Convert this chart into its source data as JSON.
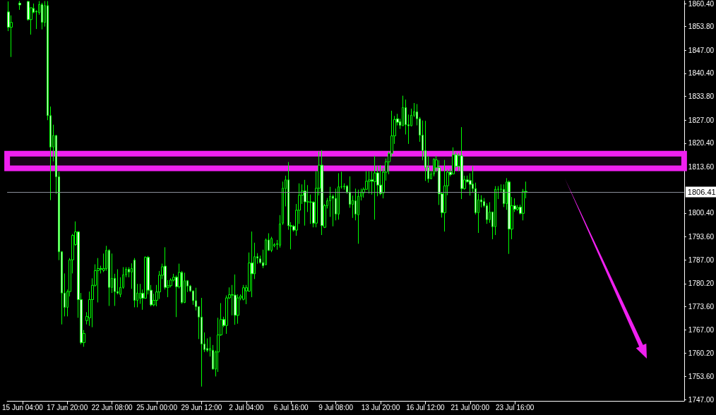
{
  "chart_data": {
    "type": "candlestick",
    "color": "#00ff00",
    "categories": [
      null,
      null,
      null,
      null,
      null,
      "15 Jun 04:00",
      null,
      null,
      null,
      null,
      null,
      null,
      null,
      null,
      null,
      null,
      null,
      null,
      null,
      null,
      null,
      "17 Jun 20:00",
      null,
      null,
      null,
      null,
      null,
      null,
      null,
      null,
      null,
      null,
      null,
      null,
      null,
      null,
      null,
      "22 Jun 08:00",
      null,
      null,
      null,
      null,
      null,
      null,
      null,
      null,
      null,
      null,
      null,
      null,
      null,
      null,
      null,
      "25 Jun 00:00",
      null,
      null,
      null,
      null,
      null,
      null,
      null,
      null,
      null,
      null,
      null,
      null,
      null,
      null,
      null,
      "29 Jun 12:00",
      null,
      null,
      null,
      null,
      null,
      null,
      null,
      null,
      null,
      null,
      null,
      null,
      null,
      null,
      null,
      "2 Jul 04:00",
      null,
      null,
      null,
      null,
      null,
      null,
      null,
      null,
      null,
      null,
      null,
      null,
      null,
      null,
      null,
      "6 Jul 16:00",
      null,
      null,
      null,
      null,
      null,
      null,
      null,
      null,
      null,
      null,
      null,
      null,
      null,
      null,
      null,
      "9 Jul 08:00",
      null,
      null,
      null,
      null,
      null,
      null,
      null,
      null,
      null,
      null,
      null,
      null,
      null,
      null,
      null,
      "13 Jul 20:00",
      null,
      null,
      null,
      null,
      null,
      null,
      null,
      null,
      null,
      null,
      null,
      null,
      null,
      null,
      null,
      "16 Jul 12:00",
      null,
      null,
      null,
      null,
      null,
      null,
      null,
      null,
      null,
      null,
      null,
      null,
      null,
      null,
      null,
      "21 Jul 00:00",
      null,
      null,
      null,
      null,
      null,
      null,
      null,
      null,
      null,
      null,
      null,
      null,
      null,
      null,
      null,
      "23 Jul 16:00",
      null,
      null,
      null,
      null,
      null,
      null,
      null,
      null,
      null,
      null,
      null,
      null,
      null,
      null,
      null,
      null,
      null,
      null,
      null,
      null,
      null,
      null,
      null,
      null,
      null,
      null,
      null,
      null,
      null,
      null,
      null,
      null,
      null,
      null,
      null,
      null,
      null,
      null,
      null,
      null,
      null,
      null,
      null,
      null,
      null,
      null,
      null,
      null,
      null,
      null,
      null,
      null,
      null,
      null,
      null,
      null,
      null,
      null,
      null,
      null
    ],
    "ohlc": [
      [
        1858.0,
        1861.0,
        1852.5,
        1853.6
      ],
      [
        1853.6,
        1857.0,
        1845.1,
        1855.0
      ],
      null,
      null,
      [
        1860.5,
        1861.1,
        1858.6,
        1860.0
      ],
      null,
      null,
      [
        1861.0,
        1861.1,
        1855.5,
        1855.8
      ],
      [
        1855.8,
        1859.2,
        1851.5,
        1859.2
      ],
      [
        1859.0,
        1860.4,
        1857.6,
        1857.9
      ],
      [
        1858.2,
        1858.5,
        1853.1,
        1858.0
      ],
      [
        1857.8,
        1861.1,
        1857.2,
        1860.1
      ],
      [
        1860.1,
        1860.6,
        1853.0,
        1855.0
      ],
      [
        1855.0,
        1861.1,
        1853.8,
        1859.8
      ],
      [
        1859.8,
        1861.1,
        1827.0,
        1828.3
      ],
      [
        1828.3,
        1830.9,
        1804.1,
        1819.3
      ],
      [
        1819.3,
        1825.7,
        1815.2,
        1822.6
      ],
      [
        1822.6,
        1822.8,
        1805.9,
        1810.8
      ],
      [
        1810.8,
        1812.2,
        1786.9,
        1789.3
      ],
      [
        1789.3,
        1789.5,
        1768.5,
        1777.5
      ],
      [
        1777.5,
        1783.1,
        1770.8,
        1773.4
      ],
      [
        1773.4,
        1778.5,
        1770.8,
        1777.9
      ],
      [
        1777.9,
        1787.5,
        1776.5,
        1787.0
      ],
      [
        1787.0,
        1794.4,
        1783.1,
        1794.0
      ],
      [
        1791.4,
        1798.0,
        1791.0,
        1795.0
      ],
      [
        1795.0,
        1795.2,
        1770.4,
        1775.6
      ],
      [
        1775.6,
        1777.5,
        1762.8,
        1763.3
      ],
      [
        1763.3,
        1766.9,
        1762.1,
        1765.9
      ],
      [
        1769.6,
        1772.0,
        1768.5,
        1770.8
      ],
      [
        1770.4,
        1777.9,
        1768.1,
        1775.6
      ],
      [
        1775.6,
        1781.7,
        1767.7,
        1779.7
      ],
      [
        1779.7,
        1785.7,
        1779.3,
        1783.9
      ],
      [
        1783.9,
        1787.5,
        1774.8,
        1784.5
      ],
      [
        1784.3,
        1785.3,
        1783.1,
        1784.5
      ],
      [
        1784.0,
        1788.8,
        1783.5,
        1784.5
      ],
      [
        1784.5,
        1791.0,
        1783.9,
        1789.7
      ],
      [
        1789.7,
        1790.0,
        1773.8,
        1779.1
      ],
      [
        1779.1,
        1788.8,
        1777.5,
        1781.7
      ],
      [
        1781.7,
        1783.0,
        1773.8,
        1777.9
      ],
      [
        1777.9,
        1784.3,
        1777.1,
        1777.5
      ],
      [
        1777.1,
        1782.0,
        1776.3,
        1779.1
      ],
      [
        1779.1,
        1784.9,
        1778.7,
        1782.7
      ],
      [
        1782.7,
        1784.9,
        1782.0,
        1784.3
      ],
      [
        1784.3,
        1784.9,
        1782.0,
        1783.5
      ],
      [
        1783.5,
        1786.0,
        1778.7,
        1784.5
      ],
      [
        1786.9,
        1787.5,
        1773.4,
        1775.4
      ],
      [
        1775.4,
        1780.1,
        1773.4,
        1777.5
      ],
      [
        1776.0,
        1780.1,
        1774.4,
        1777.4
      ],
      [
        1777.4,
        1778.5,
        1772.7,
        1776.0
      ],
      [
        1776.0,
        1788.0,
        1776.0,
        1787.7
      ],
      [
        1787.7,
        1788.1,
        1777.1,
        1778.3
      ],
      [
        1778.3,
        1779.8,
        1773.7,
        1774.1
      ],
      [
        1774.1,
        1777.3,
        1773.7,
        1775.4
      ],
      [
        1775.4,
        1779.8,
        1773.7,
        1777.8
      ],
      [
        1777.8,
        1783.8,
        1775.8,
        1782.6
      ],
      [
        1782.6,
        1785.9,
        1781.5,
        1785.0
      ],
      [
        1785.2,
        1790.6,
        1778.5,
        1779.1
      ],
      [
        1779.1,
        1781.2,
        1776.3,
        1779.6
      ],
      [
        1779.6,
        1781.7,
        1779.1,
        1781.2
      ],
      [
        1781.2,
        1783.0,
        1780.8,
        1782.0
      ],
      [
        1782.0,
        1782.5,
        1770.6,
        1779.3
      ],
      [
        1779.3,
        1785.9,
        1778.8,
        1783.4
      ],
      [
        1783.4,
        1783.8,
        1774.4,
        1774.8
      ],
      [
        1774.8,
        1783.3,
        1774.6,
        1781.0
      ],
      [
        1781.0,
        1781.2,
        1777.8,
        1779.5
      ],
      [
        1779.5,
        1779.8,
        1777.8,
        1778.1
      ],
      [
        1778.1,
        1778.2,
        1774.1,
        1775.3
      ],
      [
        1775.3,
        1779.0,
        1772.5,
        1773.6
      ],
      [
        1773.6,
        1773.6,
        1764.3,
        1770.6
      ],
      [
        1770.6,
        1776.1,
        1750.7,
        1762.9
      ],
      [
        1762.9,
        1766.2,
        1760.6,
        1761.3
      ],
      [
        1761.6,
        1764.5,
        1760.6,
        1761.1
      ],
      [
        1761.1,
        1764.9,
        1759.3,
        1761.6
      ],
      [
        1761.1,
        1762.6,
        1755.6,
        1755.7
      ],
      [
        1755.7,
        1761.0,
        1753.6,
        1760.6
      ],
      [
        1760.6,
        1770.4,
        1754.9,
        1765.5
      ],
      [
        1765.5,
        1774.6,
        1765.2,
        1769.9
      ],
      [
        1769.9,
        1770.7,
        1767.7,
        1768.2
      ],
      [
        1768.2,
        1776.8,
        1765.8,
        1776.1
      ],
      [
        1776.1,
        1779.1,
        1775.8,
        1777.0
      ],
      [
        1777.0,
        1779.8,
        1771.1,
        1776.9
      ],
      [
        1776.9,
        1782.8,
        1768.4,
        1771.1
      ],
      [
        1771.1,
        1777.1,
        1768.7,
        1776.1
      ],
      [
        1776.1,
        1777.1,
        1775.4,
        1776.6
      ],
      [
        1775.7,
        1779.8,
        1775.4,
        1779.0
      ],
      [
        1778.1,
        1779.8,
        1774.3,
        1779.0
      ],
      [
        1778.0,
        1789.1,
        1777.9,
        1786.1
      ],
      [
        1786.1,
        1795.1,
        1776.3,
        1783.0
      ],
      [
        1783.0,
        1791.9,
        1781.5,
        1787.9
      ],
      [
        1787.9,
        1788.9,
        1785.9,
        1787.5
      ],
      [
        1787.3,
        1788.2,
        1785.9,
        1786.2
      ],
      [
        1786.2,
        1789.9,
        1784.6,
        1785.3
      ],
      [
        1785.6,
        1793.1,
        1785.5,
        1792.7
      ],
      [
        1792.7,
        1794.6,
        1789.6,
        1789.7
      ],
      [
        1789.7,
        1793.6,
        1789.2,
        1793.1
      ],
      [
        1791.0,
        1791.8,
        1790.6,
        1791.4
      ],
      [
        1791.4,
        1792.7,
        1789.9,
        1791.6
      ],
      [
        1791.2,
        1799.8,
        1790.5,
        1797.3
      ],
      [
        1797.5,
        1809.4,
        1797.0,
        1807.5
      ],
      [
        1807.4,
        1811.1,
        1802.3,
        1809.9
      ],
      [
        1809.9,
        1815.0,
        1795.6,
        1796.8
      ],
      [
        1796.8,
        1797.8,
        1790.0,
        1796.6
      ],
      [
        1796.6,
        1797.0,
        1795.1,
        1795.5
      ],
      [
        1795.5,
        1803.0,
        1793.9,
        1801.2
      ],
      [
        1801.2,
        1808.9,
        1797.3,
        1805.5
      ],
      [
        1805.5,
        1808.6,
        1803.0,
        1806.7
      ],
      [
        1806.7,
        1809.9,
        1796.8,
        1803.6
      ],
      [
        1803.6,
        1808.4,
        1800.7,
        1803.6
      ],
      [
        1803.6,
        1805.7,
        1797.3,
        1803.5
      ],
      [
        1803.5,
        1803.8,
        1796.3,
        1797.5
      ],
      [
        1797.5,
        1812.4,
        1796.3,
        1807.5
      ],
      [
        1807.5,
        1818.0,
        1805.4,
        1814.1
      ],
      [
        1814.1,
        1818.4,
        1794.1,
        1796.8
      ],
      [
        1796.3,
        1803.0,
        1796.1,
        1802.5
      ],
      [
        1802.5,
        1804.7,
        1801.7,
        1803.9
      ],
      [
        1803.9,
        1807.9,
        1799.3,
        1805.2
      ],
      [
        1805.2,
        1805.7,
        1796.6,
        1804.6
      ],
      [
        1804.6,
        1807.4,
        1798.3,
        1800.1
      ],
      [
        1800.1,
        1811.8,
        1798.5,
        1807.9
      ],
      [
        1807.9,
        1812.2,
        1807.4,
        1807.9
      ],
      [
        1807.9,
        1808.9,
        1807.1,
        1808.1
      ],
      [
        1808.1,
        1808.4,
        1805.9,
        1806.4
      ],
      [
        1806.4,
        1810.9,
        1801.9,
        1802.9
      ],
      [
        1802.9,
        1805.4,
        1799.0,
        1804.0
      ],
      [
        1803.9,
        1807.4,
        1798.3,
        1800.1
      ],
      [
        1799.9,
        1807.1,
        1791.6,
        1805.2
      ],
      [
        1805.2,
        1807.4,
        1804.0,
        1806.4
      ],
      [
        1806.2,
        1807.7,
        1804.8,
        1807.2
      ],
      [
        1807.2,
        1812.4,
        1807.1,
        1809.5
      ],
      [
        1809.5,
        1812.4,
        1806.0,
        1809.9
      ],
      [
        1809.9,
        1812.4,
        1805.7,
        1809.5
      ],
      [
        1809.4,
        1816.8,
        1798.5,
        1811.9
      ],
      [
        1811.9,
        1813.8,
        1805.2,
        1808.4
      ],
      [
        1808.4,
        1814.1,
        1805.5,
        1806.0
      ],
      [
        1806.2,
        1813.3,
        1804.6,
        1812.1
      ],
      [
        1812.1,
        1816.0,
        1809.7,
        1815.1
      ],
      [
        1815.1,
        1818.0,
        1811.5,
        1817.5
      ],
      [
        1817.5,
        1829.7,
        1816.5,
        1822.5
      ],
      [
        1822.5,
        1828.2,
        1820.2,
        1827.2
      ],
      [
        1827.4,
        1828.8,
        1825.5,
        1826.4
      ],
      [
        1826.6,
        1827.4,
        1824.5,
        1825.5
      ],
      [
        1825.4,
        1834.0,
        1825.4,
        1830.6
      ],
      [
        1830.6,
        1832.9,
        1822.9,
        1825.7
      ],
      [
        1825.7,
        1828.6,
        1820.2,
        1825.4
      ],
      [
        1825.4,
        1830.3,
        1825.2,
        1828.4
      ],
      [
        1828.4,
        1831.9,
        1827.9,
        1829.4
      ],
      [
        1829.4,
        1831.6,
        1825.5,
        1827.4
      ],
      [
        1827.4,
        1827.9,
        1820.8,
        1822.7
      ],
      [
        1822.7,
        1826.9,
        1815.5,
        1818.3
      ],
      [
        1818.3,
        1826.8,
        1809.6,
        1813.4
      ],
      [
        1813.4,
        1816.8,
        1809.1,
        1810.2
      ],
      [
        1810.2,
        1812.4,
        1810.1,
        1811.6
      ],
      [
        1811.6,
        1816.1,
        1810.9,
        1815.8
      ],
      [
        1813.4,
        1816.8,
        1812.1,
        1815.6
      ],
      [
        1813.4,
        1815.5,
        1802.7,
        1805.9
      ],
      [
        1805.9,
        1806.4,
        1799.1,
        1800.5
      ],
      [
        1800.5,
        1815.6,
        1795.1,
        1808.2
      ],
      [
        1808.2,
        1812.8,
        1805.5,
        1812.1
      ],
      [
        1812.1,
        1813.1,
        1810.9,
        1811.4
      ],
      [
        1811.6,
        1819.2,
        1811.6,
        1817.1
      ],
      [
        1817.1,
        1817.8,
        1813.4,
        1813.8
      ],
      [
        1813.8,
        1817.5,
        1812.5,
        1816.8
      ],
      [
        1816.8,
        1825.0,
        1804.4,
        1807.4
      ],
      [
        1807.4,
        1811.1,
        1807.1,
        1809.9
      ],
      [
        1809.9,
        1811.1,
        1809.1,
        1809.4
      ],
      [
        1809.7,
        1811.8,
        1805.4,
        1808.6
      ],
      [
        1808.7,
        1813.8,
        1806.4,
        1807.4
      ],
      [
        1807.4,
        1809.1,
        1800.0,
        1800.5
      ],
      [
        1800.5,
        1805.9,
        1794.7,
        1804.2
      ],
      [
        1804.2,
        1805.5,
        1802.0,
        1803.6
      ],
      [
        1803.7,
        1804.7,
        1802.0,
        1802.5
      ],
      [
        1802.5,
        1803.2,
        1797.3,
        1798.5
      ],
      [
        1798.5,
        1803.5,
        1797.6,
        1800.7
      ],
      [
        1800.7,
        1800.7,
        1792.9,
        1796.5
      ],
      [
        1796.5,
        1808.1,
        1794.1,
        1807.2
      ],
      [
        1807.2,
        1808.1,
        1804.4,
        1807.2
      ],
      [
        1807.2,
        1808.6,
        1806.2,
        1807.2
      ],
      [
        1807.2,
        1808.6,
        1802.1,
        1803.1
      ],
      [
        1803.1,
        1810.4,
        1801.3,
        1809.3
      ],
      [
        1809.3,
        1809.7,
        1788.7,
        1795.8
      ],
      [
        1795.8,
        1805.0,
        1792.9,
        1802.5
      ],
      [
        1802.5,
        1804.6,
        1800.7,
        1801.5
      ],
      [
        1801.5,
        1802.7,
        1801.0,
        1802.0
      ],
      [
        1802.1,
        1802.8,
        1800.0,
        1800.3
      ],
      [
        1800.3,
        1807.3,
        1798.3,
        1806.6
      ],
      [
        1806.6,
        1809.4,
        1804.6,
        1806.4
      ],
      null,
      null,
      null,
      null,
      null,
      null,
      null,
      null,
      null,
      null,
      null,
      null,
      null,
      null,
      null,
      null,
      null,
      null,
      null,
      null,
      null,
      null,
      null,
      null,
      null,
      null,
      null,
      null,
      null,
      null,
      null,
      null,
      null,
      null,
      null,
      null,
      null,
      null,
      null,
      null,
      null,
      null,
      null,
      null,
      null,
      null,
      null,
      null,
      null,
      null,
      null,
      null,
      null,
      null,
      null,
      null
    ],
    "ylim": [
      1746.6,
      1861.2
    ],
    "yticks": [
      {
        "value": 1860.4,
        "label": "1860.40"
      },
      {
        "value": 1853.8,
        "label": "1853.80"
      },
      {
        "value": 1847,
        "label": "1847.00"
      },
      {
        "value": 1840.4,
        "label": "1840.40"
      },
      {
        "value": 1833.8,
        "label": "1833.80"
      },
      {
        "value": 1827,
        "label": "1827.00"
      },
      {
        "value": 1820.4,
        "label": "1820.40"
      },
      {
        "value": 1813.6,
        "label": "1813.60"
      },
      {
        "value": 1800.4,
        "label": "1800.40"
      },
      {
        "value": 1793.6,
        "label": "1793.60"
      },
      {
        "value": 1787,
        "label": "1787.00"
      },
      {
        "value": 1780.2,
        "label": "1780.20"
      },
      {
        "value": 1773.6,
        "label": "1773.60"
      },
      {
        "value": 1767,
        "label": "1767.00"
      },
      {
        "value": 1760.2,
        "label": "1760.20"
      },
      {
        "value": 1753.6,
        "label": "1753.60"
      },
      {
        "value": 1747,
        "label": "1747.00"
      }
    ],
    "ref_lines": [
      {
        "axis": "y",
        "value": 1806.41,
        "label": "1806.41",
        "color": "#8a8f99"
      }
    ],
    "bands": [
      {
        "axis": "y",
        "from": 1813.2,
        "to": 1817.4,
        "color": "#f020f0"
      }
    ],
    "grid": false
  }
}
